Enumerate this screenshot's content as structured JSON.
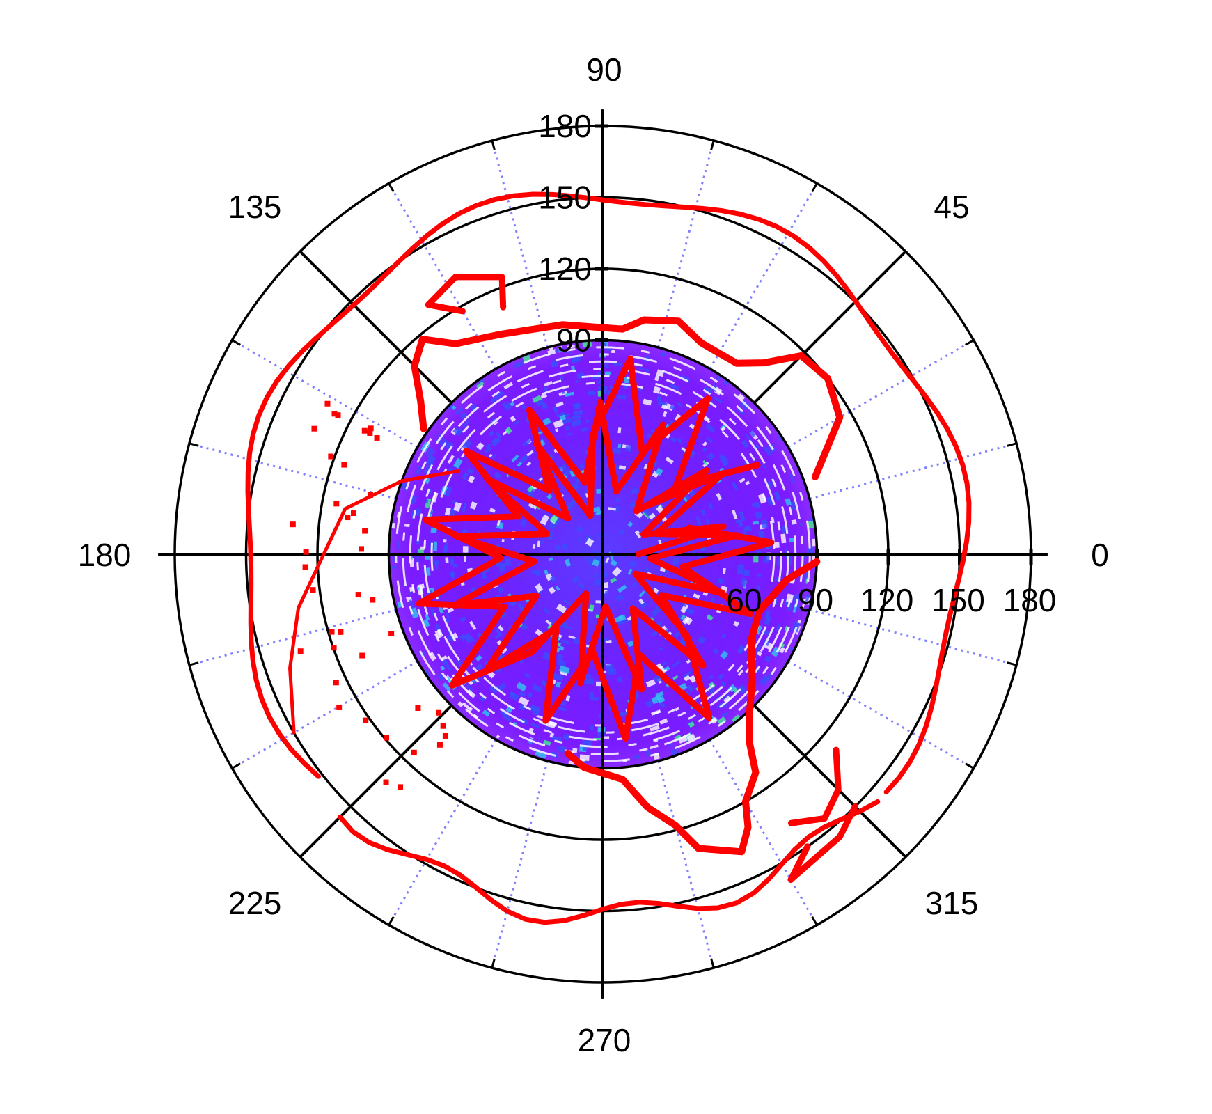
{
  "chart_data": {
    "type": "polar",
    "title": "",
    "subtitle": "",
    "description": "Polar plot (azimuthal projection) of a gridded scalar field drawn as a colored disk within radius 90, overlaid with red coastline traces extending to ~160.",
    "angular_axis": {
      "unit": "degrees",
      "direction": "counterclockwise",
      "zero_at": "right",
      "major_ticks": [
        0,
        45,
        90,
        135,
        180,
        225,
        270,
        315
      ],
      "tick_labels": [
        "0",
        "45",
        "90",
        "135",
        "180",
        "225",
        "270",
        "315"
      ],
      "minor_spoke_step": 15,
      "minor_spoke_style": "dotted",
      "major_spoke_style": "solid"
    },
    "radial_axis": {
      "range": [
        0,
        180
      ],
      "rings": [
        30,
        60,
        90,
        120,
        150,
        180
      ],
      "tick_labels_vertical": [
        "90",
        "120",
        "150",
        "180"
      ],
      "tick_labels_horizontal": [
        "60",
        "90",
        "120",
        "150",
        "180"
      ],
      "label_positions": [
        "along 90° axis (left side)",
        "below 0° axis"
      ]
    },
    "layers": [
      {
        "name": "field",
        "kind": "filled disk / heatmap",
        "radial_extent": [
          0,
          90
        ],
        "colormap": [
          "#7a1cff",
          "#3a50ff",
          "#30c8f0",
          "#40f090",
          "#c0f040"
        ],
        "dominant_color": "#7a1cff"
      },
      {
        "name": "coastlines",
        "kind": "line/scatter",
        "color": "#ff0000",
        "radial_extent": [
          40,
          162
        ],
        "outer_trace_radius_approx": 155
      }
    ],
    "grid": true,
    "legend": null,
    "xlabel": "",
    "ylabel": ""
  },
  "style": {
    "ring_color": "#000000",
    "major_spoke_color": "#000000",
    "minor_spoke_color": "#7f7fff",
    "coast_color": "#ff0000",
    "field_base": "#7a1cff",
    "field_mid": "#3a50ff",
    "field_cyan": "#30c8f0",
    "field_green": "#40f090"
  }
}
